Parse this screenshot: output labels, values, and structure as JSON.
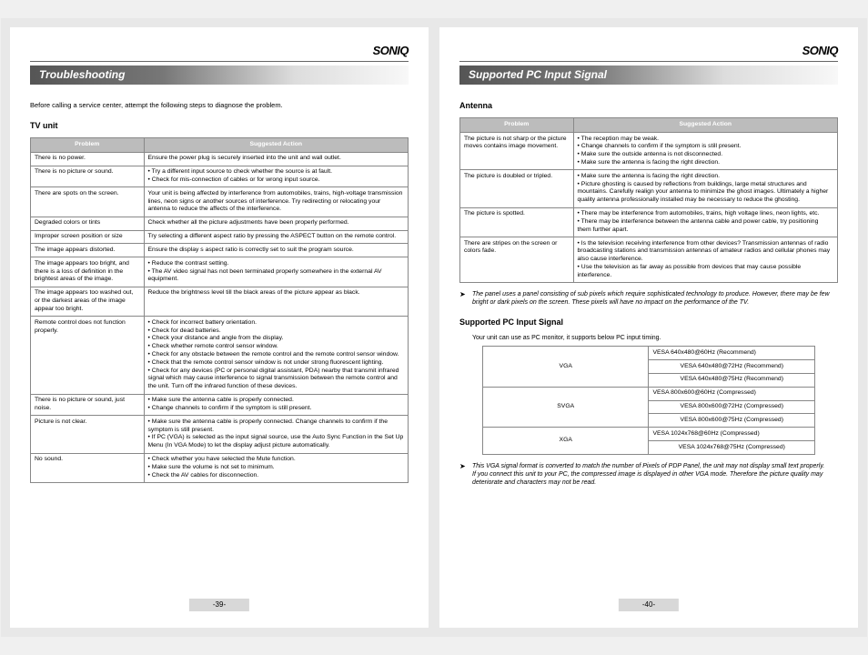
{
  "brand": "SONIQ",
  "left": {
    "header": "Troubleshooting",
    "intro": "Before calling a service center, attempt the following steps to diagnose the problem.",
    "subheading": "TV unit",
    "th_problem": "Problem",
    "th_action": "Suggested Action",
    "rows": [
      {
        "p": "There is no power.",
        "a": "Ensure the power plug is securely inserted into the unit and wall outlet."
      },
      {
        "p": "There is no picture or sound.",
        "a_list": [
          "Try a different input source to check whether the source is at fault.",
          "Check for mis-connection of cables or for wrong input source."
        ]
      },
      {
        "p": "There are spots on the screen.",
        "a": "Your unit is being affected by interference from automobiles, trains, high-voltage transmission lines, neon signs or another sources of interference. Try redirecting or relocating your antenna to reduce the affects of the interference."
      },
      {
        "p": "Degraded colors or tints",
        "a": "Check whether all the picture adjustments have been properly performed."
      },
      {
        "p": "Improper screen position or size",
        "a": "Try selecting a different aspect ratio by pressing the ASPECT button on the remote control."
      },
      {
        "p": "The image appears distorted.",
        "a": "Ensure the display s aspect ratio is correctly set to suit the program source."
      },
      {
        "p": "The image appears too bright, and there is a loss of definition in the brightest areas of the image.",
        "a_list": [
          "Reduce the contrast setting.",
          "The AV video signal has not been terminated properly somewhere in the external AV equipment."
        ]
      },
      {
        "p": "The image appears too washed out, or the darkest areas of the image appear too bright.",
        "a": "Reduce the brightness level till the black areas of the picture appear as black."
      },
      {
        "p": "Remote control does not function properly.",
        "a_list": [
          "Check for incorrect battery orientation.",
          "Check for dead batteries.",
          "Check your distance and angle from the display.",
          "Check whether remote control sensor window.",
          "Check for any obstacle between the remote control and the remote control sensor window.",
          "Check that the remote control sensor window is not under strong fluorescent lighting.",
          "Check for any devices (PC or personal digital assistant, PDA) nearby that transmit infrared signal which may cause interference to signal transmission between the remote control and the unit. Turn off the infrared function of these devices."
        ]
      },
      {
        "p": "There is no picture or sound, just noise.",
        "a_list": [
          "Make sure the antenna cable is properly connected.",
          "Change channels to confirm if the symptom is still present."
        ]
      },
      {
        "p": "Picture is not clear.",
        "a_list": [
          "Make sure the antenna cable is properly connected. Change channels to confirm if the symptom is still present.",
          "If PC (VGA) is selected as the input signal source, use the Auto Sync Function in the Set Up Menu (In VGA Mode) to let the display adjust picture automatically."
        ]
      },
      {
        "p": "No sound.",
        "a_list": [
          "Check whether you have selected the Mute function.",
          "Make sure the volume is not set to minimum.",
          "Check the AV cables for disconnection."
        ]
      }
    ],
    "page_num": "-39-"
  },
  "right": {
    "header": "Supported PC Input Signal",
    "subheading1": "Antenna",
    "th_problem": "Problem",
    "th_action": "Suggested Action",
    "rows": [
      {
        "p": "The picture is not sharp or the picture moves contains image movement.",
        "a_list": [
          "The reception may be weak.",
          "Change channels to confirm if the symptom is still present.",
          "Make sure the outside antenna is not disconnected.",
          "Make sure the antenna is facing the right direction."
        ]
      },
      {
        "p": "The picture is doubled or tripled.",
        "a_list": [
          "Make sure the antenna is facing the right direction.",
          "Picture ghosting is caused by reflections from buildings, large metal structures and mountains. Carefully realign your antenna to minimize the ghost images. Ultimately a higher quality antenna professionally installed may be necessary to reduce the ghosting."
        ]
      },
      {
        "p": "The picture is spotted.",
        "a_list": [
          "There may be interference from automobiles, trains, high voltage lines, neon lights, etc.",
          "There may be interference between the antenna cable and power cable, try positioning them further apart."
        ]
      },
      {
        "p": "There are stripes on the screen or colors fade.",
        "a_list": [
          "Is the television receiving interference from other devices? Transmission antennas of radio broadcasting stations and transmission antennas of amateur radios and cellular phones may also cause interference.",
          "Use the television as far away as possible from devices that may cause possible interference."
        ]
      }
    ],
    "note1": "The panel uses a panel consisting of sub pixels which require sophisticated technology to produce. However, there may be few bright or dark pixels on the screen. These pixels will have no impact on the performance of the TV.",
    "subheading2": "Supported PC Input Signal",
    "sig_intro": "Your unit can use as PC monitor, it supports below PC input timing.",
    "sig_rows": [
      {
        "std": "VGA",
        "modes": [
          "VESA  640x480@60Hz   (Recommend)",
          "VESA  640x480@72Hz   (Recommend)",
          "VESA  640x480@75Hz   (Recommend)"
        ]
      },
      {
        "std": "SVGA",
        "modes": [
          "VESA  800x600@60Hz   (Compressed)",
          "VESA  800x600@72Hz   (Compressed)",
          "VESA  800x600@75Hz   (Compressed)"
        ]
      },
      {
        "std": "XGA",
        "modes": [
          "VESA  1024x768@60Hz (Compressed)",
          "VESA  1024x768@75Hz (Compressed)"
        ]
      }
    ],
    "note2": "This VGA signal format is converted to match the number of Pixels of PDP Panel, the unit may not display small text properly.\nIf you connect this unit to your PC, the compressed image is displayed in other VGA mode. Therefore the picture quality may deteriorate and characters may not be read.",
    "page_num": "-40-"
  }
}
